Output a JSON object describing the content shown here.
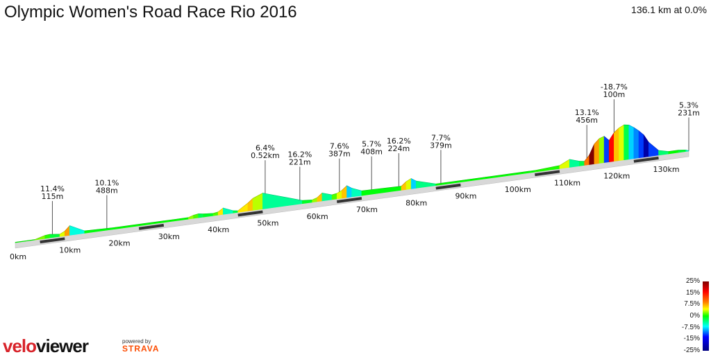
{
  "title": "Olympic Women's Road Race Rio 2016",
  "summary": "136.1 km at 0.0%",
  "chart_data": {
    "type": "area",
    "title": "Olympic Women's Road Race Rio 2016",
    "xlabel": "",
    "ylabel": "",
    "x_unit": "km",
    "xlim": [
      0,
      136.1
    ],
    "km_ticks": [
      "0km",
      "10km",
      "20km",
      "30km",
      "40km",
      "50km",
      "60km",
      "70km",
      "80km",
      "90km",
      "100km",
      "110km",
      "120km",
      "130km"
    ],
    "profile": {
      "km": [
        0,
        2,
        4,
        6,
        7,
        9,
        10,
        11,
        12,
        14,
        20,
        30,
        35,
        36,
        37,
        38,
        40,
        41,
        42,
        44,
        45,
        47,
        48,
        50,
        55,
        58,
        60,
        61,
        62,
        63,
        64,
        65,
        66,
        67,
        68,
        70,
        78,
        79,
        80,
        81,
        85,
        95,
        105,
        110,
        112,
        114,
        115,
        116,
        117,
        118,
        119,
        120,
        121,
        122,
        123,
        124,
        125,
        126,
        127,
        128,
        130,
        132,
        134,
        135.5,
        136.1
      ],
      "elev_m": [
        5,
        5,
        6,
        40,
        45,
        30,
        60,
        120,
        90,
        30,
        20,
        20,
        20,
        40,
        50,
        40,
        30,
        40,
        80,
        30,
        20,
        100,
        150,
        200,
        100,
        40,
        30,
        50,
        100,
        80,
        60,
        70,
        100,
        150,
        110,
        60,
        50,
        100,
        130,
        90,
        20,
        20,
        20,
        40,
        100,
        60,
        50,
        120,
        250,
        310,
        330,
        270,
        360,
        410,
        440,
        430,
        390,
        340,
        280,
        180,
        60,
        30,
        30,
        20,
        5
      ]
    },
    "annotations": [
      {
        "km": 7.5,
        "pct": "11.4%",
        "val": "115m"
      },
      {
        "km": 18.5,
        "pct": "10.1%",
        "val": "488m"
      },
      {
        "km": 50.5,
        "pct": "6.4%",
        "val": "0.52km"
      },
      {
        "km": 57.5,
        "pct": "16.2%",
        "val": "221m"
      },
      {
        "km": 65.5,
        "pct": "7.6%",
        "val": "387m"
      },
      {
        "km": 72.0,
        "pct": "5.7%",
        "val": "408m"
      },
      {
        "km": 77.5,
        "pct": "16.2%",
        "val": "224m"
      },
      {
        "km": 86.0,
        "pct": "7.7%",
        "val": "379m"
      },
      {
        "km": 115.5,
        "pct": "13.1%",
        "val": "456m"
      },
      {
        "km": 121.0,
        "pct": "-18.7%",
        "val": "100m"
      },
      {
        "km": 136.1,
        "pct": "5.3%",
        "val": "231m"
      }
    ],
    "color_scale": {
      "labels": [
        "25%",
        "15%",
        "7.5%",
        "0%",
        "-7.5%",
        "-15%",
        "-25%"
      ],
      "colors": [
        "#800000",
        "#ff0000",
        "#ff8000",
        "#ffff00",
        "#00ff00",
        "#00ffff",
        "#0000ff",
        "#000080"
      ]
    }
  },
  "branding": {
    "logo_part1": "velo",
    "logo_part2": "viewer",
    "powered_by": "powered by",
    "partner": "STRAVA"
  }
}
